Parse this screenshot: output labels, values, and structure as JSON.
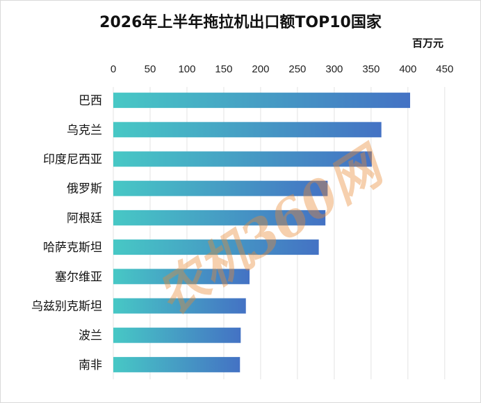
{
  "chart_data": {
    "type": "bar",
    "orientation": "horizontal",
    "title": "2026年上半年拖拉机出口额TOP10国家",
    "unit": "百万元",
    "categories": [
      "巴西",
      "乌克兰",
      "印度尼西亚",
      "俄罗斯",
      "阿根廷",
      "哈萨克斯坦",
      "塞尔维亚",
      "乌兹别克斯坦",
      "波兰",
      "南非"
    ],
    "values": [
      403,
      364,
      351,
      291,
      288,
      279,
      185,
      180,
      173,
      172
    ],
    "xlim": [
      0,
      450
    ],
    "xticks": [
      0,
      50,
      100,
      150,
      200,
      250,
      300,
      350,
      400,
      450
    ],
    "axis_position": "top",
    "grid": "vertical",
    "bar_gradient": [
      "#47c8c5",
      "#4472c4"
    ],
    "gridline_color": "#e3e3e3"
  },
  "watermark": "农机360网"
}
